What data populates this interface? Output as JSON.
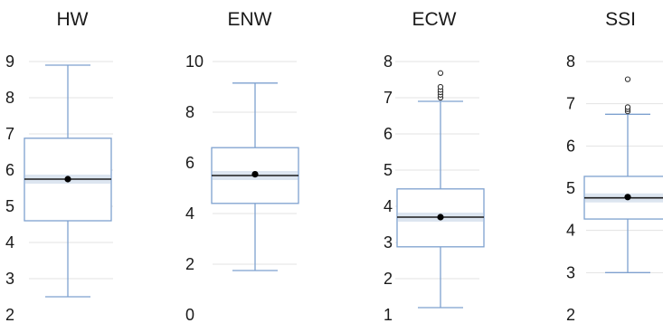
{
  "chart_data": [
    {
      "type": "box",
      "title": "HW",
      "ylim": [
        2,
        9
      ],
      "yticks": [
        "2",
        "3",
        "4",
        "5",
        "6",
        "7",
        "8",
        "9"
      ],
      "grid": true,
      "box": {
        "whisker_low": 2.5,
        "q1": 4.6,
        "median": 5.75,
        "mean": 5.75,
        "q3": 6.88,
        "whisker_high": 8.9
      },
      "outliers": []
    },
    {
      "type": "box",
      "title": "ENW",
      "ylim": [
        0,
        10
      ],
      "yticks": [
        "0",
        "2",
        "4",
        "6",
        "8",
        "10"
      ],
      "grid": true,
      "box": {
        "whisker_low": 1.75,
        "q1": 4.4,
        "median": 5.5,
        "mean": 5.55,
        "q3": 6.6,
        "whisker_high": 9.15
      },
      "outliers": []
    },
    {
      "type": "box",
      "title": "ECW",
      "ylim": [
        1,
        8
      ],
      "yticks": [
        "1",
        "2",
        "3",
        "4",
        "5",
        "6",
        "7",
        "8"
      ],
      "grid": true,
      "box": {
        "whisker_low": 1.2,
        "q1": 2.88,
        "median": 3.7,
        "mean": 3.7,
        "q3": 4.48,
        "whisker_high": 6.9
      },
      "outliers": [
        7.0,
        7.08,
        7.15,
        7.22,
        7.3,
        7.68
      ]
    },
    {
      "type": "box",
      "title": "SSI",
      "ylim": [
        2,
        8
      ],
      "yticks": [
        "2",
        "3",
        "4",
        "5",
        "6",
        "7",
        "8"
      ],
      "grid": true,
      "box": {
        "whisker_low": 3.0,
        "q1": 4.27,
        "median": 4.77,
        "mean": 4.79,
        "q3": 5.28,
        "whisker_high": 6.75
      },
      "outliers": [
        6.82,
        6.87,
        6.92,
        7.58
      ]
    }
  ],
  "colors": {
    "box_stroke": "#7ea1cf",
    "median_line": "#1c1c1c",
    "median_band": "#dce5f0",
    "mean_marker": "#000000",
    "outlier_marker": "#333333",
    "gridline": "#e3e3e3",
    "text": "#1a1a1a"
  }
}
